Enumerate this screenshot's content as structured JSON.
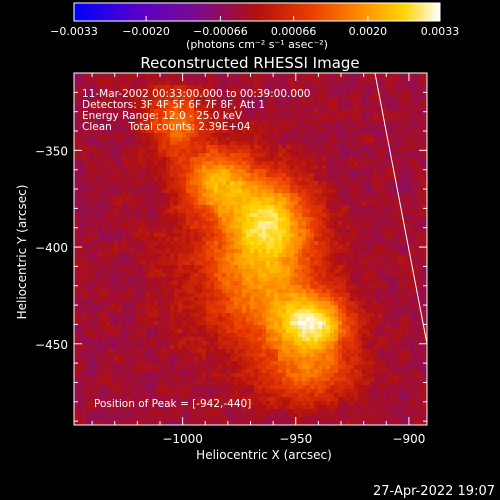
{
  "chart_data": {
    "type": "heatmap",
    "title": "Reconstructed RHESSI Image",
    "xlabel": "Heliocentric X (arcsec)",
    "ylabel": "Heliocentric Y (arcsec)",
    "xlim": [
      -1048,
      -892
    ],
    "ylim": [
      -492,
      -310
    ],
    "x_ticks": [
      -1000,
      -950,
      -900
    ],
    "y_ticks": [
      -350,
      -400,
      -450
    ],
    "x_tick_labels": [
      "−1000",
      "−950",
      "−900"
    ],
    "y_tick_labels": [
      "−350",
      "−400",
      "−450"
    ],
    "colorbar": {
      "ticks": [
        -0.0033,
        -0.002,
        -0.00066,
        0.00066,
        0.002,
        0.0033
      ],
      "tick_labels": [
        "−0.0033",
        "−0.0020",
        "−0.00066",
        "0.00066",
        "0.0020",
        "0.0033"
      ],
      "unit_label": "(photons cm⁻² s⁻¹ asec⁻²)",
      "colormap": [
        "#0000ff",
        "#5a00c8",
        "#7a0c8a",
        "#b01010",
        "#e83a00",
        "#ff8a00",
        "#ffd400",
        "#ffffff"
      ]
    },
    "annotations": {
      "line1": "11-Mar-2002 00:33:00.000 to 00:39:00.000",
      "line2": "Detectors: 3F 4F 5F 6F 7F 8F, Att 1",
      "line3": "Energy Range: 12.0 - 25.0 keV",
      "line4": "Clean     Total counts: 2.39E+04",
      "peak": "Position of Peak = [-942,-440]"
    },
    "peak_position": [
      -942,
      -440
    ],
    "limb_line": [
      [
        -915,
        -310
      ],
      [
        -892,
        -450
      ]
    ],
    "background_level": -0.00075,
    "sources": [
      {
        "x": -942,
        "y": -440,
        "sigma_x": 11,
        "sigma_y": 10,
        "amp": 0.0031
      },
      {
        "x": -962,
        "y": -385,
        "sigma_x": 13,
        "sigma_y": 15,
        "amp": 0.0024
      },
      {
        "x": -985,
        "y": -365,
        "sigma_x": 11,
        "sigma_y": 11,
        "amp": 0.0022
      },
      {
        "x": -1003,
        "y": -335,
        "sigma_x": 9,
        "sigma_y": 11,
        "amp": 0.0018
      },
      {
        "x": -960,
        "y": -420,
        "sigma_x": 16,
        "sigma_y": 22,
        "amp": 0.0016
      },
      {
        "x": -945,
        "y": -465,
        "sigma_x": 14,
        "sigma_y": 11,
        "amp": 0.0017
      },
      {
        "x": -978,
        "y": -405,
        "sigma_x": 20,
        "sigma_y": 30,
        "amp": 0.0009
      }
    ],
    "grid": false
  },
  "footer": {
    "timestamp": "27-Apr-2022 19:07"
  }
}
